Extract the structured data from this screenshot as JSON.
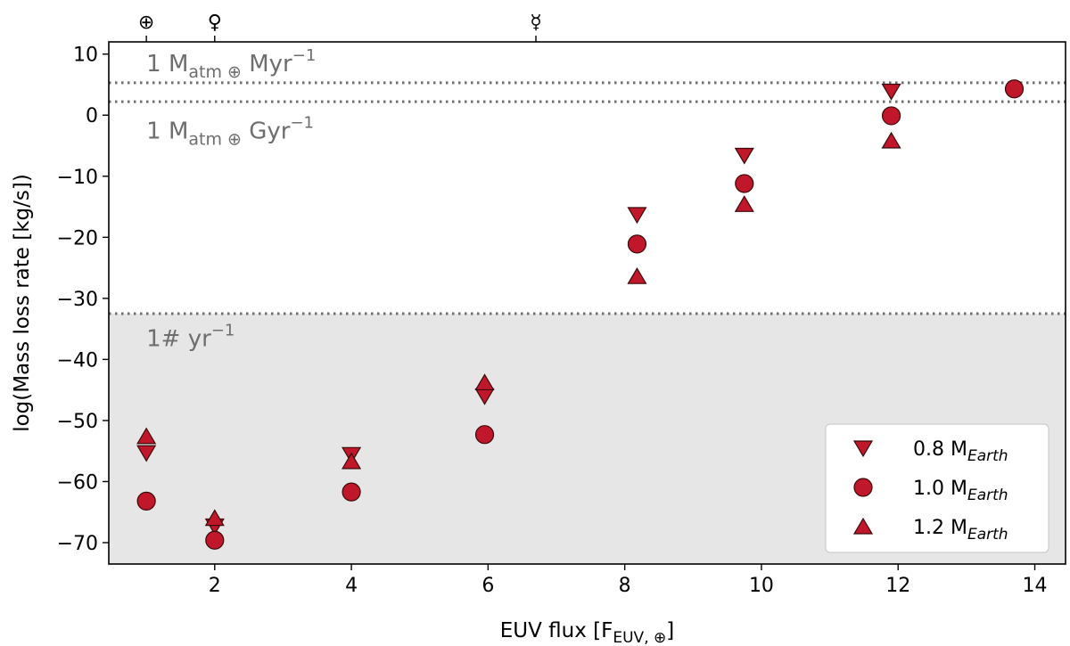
{
  "chart_data": {
    "type": "scatter",
    "xlabel": "EUV flux [F",
    "xlabel_sub": "EUV, ⊕",
    "xlabel_end": "]",
    "ylabel": "log(Mass loss rate [kg/s])",
    "xlim": [
      0.45,
      14.45
    ],
    "ylim": [
      -73.5,
      12
    ],
    "xticks": [
      2,
      4,
      6,
      8,
      10,
      12,
      14
    ],
    "yticks": [
      10,
      0,
      -10,
      -20,
      -30,
      -40,
      -50,
      -60,
      -70
    ],
    "xtick_labels": [
      "2",
      "4",
      "6",
      "8",
      "10",
      "12",
      "14"
    ],
    "ytick_labels": [
      "10",
      "0",
      "−10",
      "−20",
      "−30",
      "−40",
      "−50",
      "−60",
      "−70"
    ],
    "shaded_region": {
      "y_from": -73.5,
      "y_to": -32.5,
      "color": "#e6e6e6"
    },
    "reference_lines": [
      {
        "y": 5.3,
        "label_main": "1 M",
        "label_sub": "atm ⊕",
        "label_rest": " Myr",
        "label_sup": "−1",
        "label_y": 8.5
      },
      {
        "y": 2.2,
        "label_main": "1 M",
        "label_sub": "atm ⊕",
        "label_rest": " Gyr",
        "label_sup": "−1",
        "label_y": -2.5
      },
      {
        "y": -32.5,
        "label_main": "1# yr",
        "label_sub": "",
        "label_rest": "",
        "label_sup": "−1",
        "label_y": -36.5
      }
    ],
    "top_markers": [
      {
        "x": 1.0,
        "symbol": "⊕"
      },
      {
        "x": 2.0,
        "symbol": "♀"
      },
      {
        "x": 6.7,
        "symbol": "☿"
      }
    ],
    "series": [
      {
        "name": "0.8 M",
        "name_sub": "Earth",
        "marker": "triangle-down",
        "x": [
          1.0,
          2.0,
          4.0,
          5.95,
          8.18,
          9.75,
          11.9
        ],
        "y": [
          -55.3,
          -67.3,
          -55.6,
          -46.0,
          -16.3,
          -6.6,
          3.9
        ]
      },
      {
        "name": "1.0 M",
        "name_sub": "Earth",
        "marker": "circle",
        "x": [
          1.0,
          2.0,
          4.0,
          5.95,
          8.18,
          9.75,
          11.9,
          13.7
        ],
        "y": [
          -63.2,
          -69.6,
          -61.7,
          -52.3,
          -21.1,
          -11.2,
          -0.1,
          4.3
        ]
      },
      {
        "name": "1.2 M",
        "name_sub": "Earth",
        "marker": "triangle-up",
        "x": [
          1.0,
          2.0,
          4.0,
          5.95,
          8.18,
          9.75,
          11.9
        ],
        "y": [
          -52.6,
          -66.0,
          -56.7,
          -43.8,
          -26.4,
          -14.6,
          -4.2
        ]
      }
    ],
    "marker_color": "#c0172b",
    "marker_edge": "#3a0a0a",
    "legend_position": "lower-right",
    "grid": false
  }
}
